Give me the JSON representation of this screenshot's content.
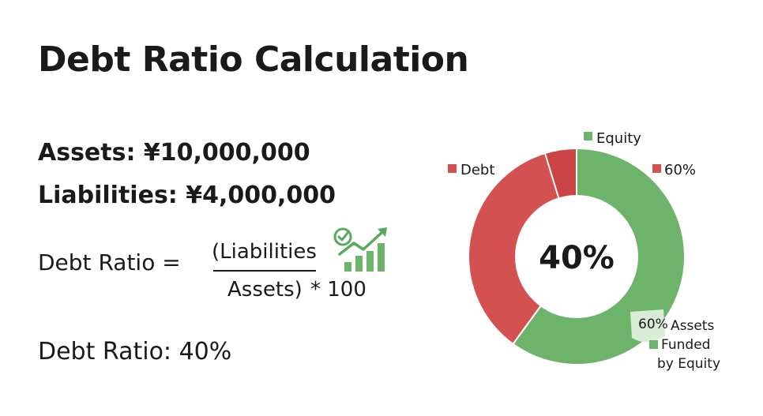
{
  "title": "Debt Ratio Calculation",
  "assets_line": "Assets: ¥10,000,000",
  "liabilities_line": "Liabilities: ¥4,000,000",
  "formula": {
    "lhs": "Debt Ratio =",
    "numerator": "(Liabilities",
    "denominator": "Assets)",
    "multiplier": "* 100"
  },
  "result": "Debt Ratio: 40%",
  "icon": "growth-chart-check-icon",
  "colors": {
    "debt": "#d35150",
    "equity": "#6db36a",
    "debt_dark": "#c94443"
  },
  "chart_data": {
    "type": "pie",
    "donut": true,
    "categories": [
      "Debt",
      "Equity"
    ],
    "values": [
      40,
      60
    ],
    "center_label": "40%",
    "legend": [
      {
        "label": "Equity",
        "color": "#6db36a"
      },
      {
        "label": "Debt",
        "color": "#d35150"
      },
      {
        "label": "60%",
        "color": "#d35150"
      }
    ],
    "callout": {
      "value": "60%",
      "lines": [
        "Assets",
        "Funded",
        "by Equity"
      ],
      "color": "#6db36a"
    }
  }
}
